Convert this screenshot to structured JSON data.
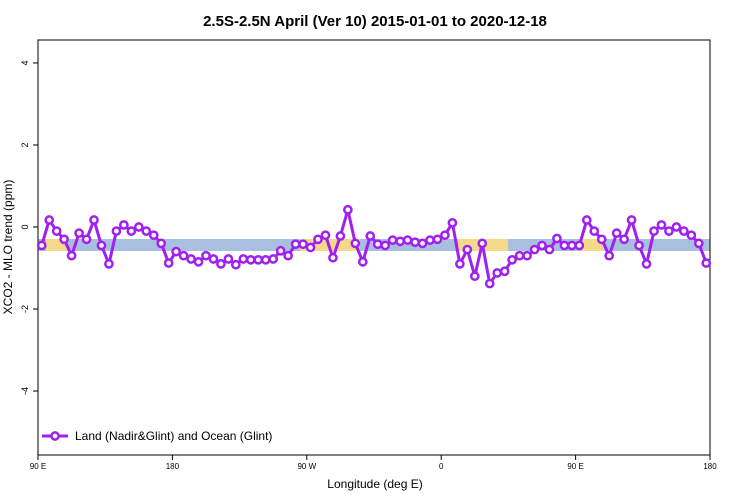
{
  "chart_data": {
    "type": "line",
    "title": "2.5S-2.5N April (Ver 10)   2015-01-01 to 2020-12-18",
    "x_label": "Longitude (deg E)",
    "y_label": "XCO2 - MLO trend (ppm)",
    "x": [
      92.5,
      97.5,
      102.5,
      107.5,
      112.5,
      117.5,
      122.5,
      127.5,
      132.5,
      137.5,
      142.5,
      147.5,
      152.5,
      157.5,
      162.5,
      167.5,
      172.5,
      177.5,
      182.5,
      187.5,
      192.5,
      197.5,
      202.5,
      207.5,
      212.5,
      217.5,
      222.5,
      227.5,
      232.5,
      237.5,
      242.5,
      247.5,
      252.5,
      257.5,
      262.5,
      267.5,
      272.5,
      277.5,
      282.5,
      287.5,
      292.5,
      297.5,
      302.5,
      307.5,
      312.5,
      317.5,
      322.5,
      327.5,
      332.5,
      337.5,
      342.5,
      347.5,
      352.5,
      357.5,
      362.5,
      367.5,
      372.5,
      377.5,
      382.5,
      387.5,
      392.5,
      397.5,
      402.5,
      407.5,
      412.5,
      417.5,
      422.5,
      427.5,
      432.5,
      437.5,
      442.5,
      447.5,
      452.5,
      457.5,
      462.5,
      467.5,
      472.5,
      477.5,
      482.5,
      487.5,
      492.5,
      497.5,
      502.5,
      507.5,
      512.5,
      517.5,
      522.5,
      527.5,
      532.5,
      537.5
    ],
    "series": [
      {
        "name": "Land (Nadir&Glint) and Ocean (Glint)",
        "color": "#a020f0",
        "values": [
          -0.45,
          0.17,
          -0.1,
          -0.3,
          -0.7,
          -0.15,
          -0.3,
          0.17,
          -0.45,
          -0.9,
          -0.1,
          0.05,
          -0.1,
          0.0,
          -0.1,
          -0.2,
          -0.4,
          -0.88,
          -0.6,
          -0.7,
          -0.78,
          -0.85,
          -0.7,
          -0.78,
          -0.9,
          -0.78,
          -0.92,
          -0.78,
          -0.8,
          -0.8,
          -0.8,
          -0.78,
          -0.58,
          -0.7,
          -0.42,
          -0.42,
          -0.5,
          -0.3,
          -0.2,
          -0.75,
          -0.22,
          0.42,
          -0.4,
          -0.85,
          -0.22,
          -0.42,
          -0.45,
          -0.32,
          -0.35,
          -0.32,
          -0.37,
          -0.4,
          -0.32,
          -0.3,
          -0.2,
          0.1,
          -0.9,
          -0.55,
          -1.2,
          -0.4,
          -1.38,
          -1.12,
          -1.08,
          -0.8,
          -0.7,
          -0.7,
          -0.55,
          -0.45,
          -0.55,
          -0.28,
          -0.45,
          -0.45,
          -0.45,
          0.17,
          -0.1,
          -0.3,
          -0.7,
          -0.15,
          -0.3,
          0.17,
          -0.45,
          -0.9,
          -0.1,
          0.05,
          -0.1,
          0.0,
          -0.1,
          -0.2,
          -0.4,
          -0.88
        ]
      }
    ],
    "xlim": [
      90,
      540
    ],
    "xticks": [
      {
        "value": 90,
        "label": "90 E"
      },
      {
        "value": 180,
        "label": "180"
      },
      {
        "value": 270,
        "label": "90 W"
      },
      {
        "value": 360,
        "label": "0"
      },
      {
        "value": 450,
        "label": "90 E"
      },
      {
        "value": 540,
        "label": "180"
      }
    ],
    "ylim": [
      -5.56,
      4.56
    ],
    "yticks": [
      -4,
      -2,
      0,
      2,
      4
    ],
    "legend": "bottom-left"
  }
}
